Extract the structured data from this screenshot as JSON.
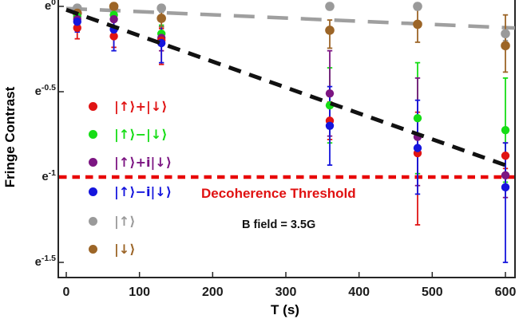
{
  "chart_data": {
    "type": "scatter",
    "title": "",
    "xlabel": "T (s)",
    "ylabel": "Fringe Contrast",
    "x_ticks": [
      "0",
      "100",
      "200",
      "300",
      "400",
      "500",
      "600"
    ],
    "x_tick_values": [
      0,
      100,
      200,
      300,
      400,
      500,
      600
    ],
    "y_ticks": [
      {
        "base": "e",
        "exp": "0",
        "value": 0
      },
      {
        "base": "e",
        "exp": "-0.5",
        "value": -0.5
      },
      {
        "base": "e",
        "exp": "-1",
        "value": -1
      },
      {
        "base": "e",
        "exp": "-1.5",
        "value": -1.5
      }
    ],
    "xlim": [
      0,
      600
    ],
    "ylim_ln": [
      -1.59,
      0.05
    ],
    "grid": false,
    "legend_position": "inside-left",
    "y_scale": "log (natural), values below are ln(contrast)",
    "series": [
      {
        "key": "up-plus-down",
        "label": "|↑⟩+|↓⟩",
        "color": "#e01414",
        "points": [
          {
            "t": 15,
            "v": -0.126,
            "lo": -0.19,
            "hi": -0.08
          },
          {
            "t": 65,
            "v": -0.175,
            "lo": -0.24,
            "hi": -0.12
          },
          {
            "t": 130,
            "v": -0.2,
            "lo": -0.34,
            "hi": -0.13
          },
          {
            "t": 360,
            "v": -0.67,
            "lo": -0.78,
            "hi": -0.56
          },
          {
            "t": 480,
            "v": -0.86,
            "lo": -1.28,
            "hi": -0.62
          },
          {
            "t": 600,
            "v": -0.875,
            "lo": -0.95,
            "hi": -0.8
          }
        ]
      },
      {
        "key": "up-minus-down",
        "label": "|↑⟩−|↓⟩",
        "color": "#16dd16",
        "points": [
          {
            "t": 15,
            "v": -0.06,
            "lo": -0.1,
            "hi": -0.03
          },
          {
            "t": 65,
            "v": -0.05,
            "lo": -0.09,
            "hi": -0.02
          },
          {
            "t": 130,
            "v": -0.16,
            "lo": -0.22,
            "hi": -0.11
          },
          {
            "t": 360,
            "v": -0.58,
            "lo": -0.8,
            "hi": -0.36
          },
          {
            "t": 480,
            "v": -0.655,
            "lo": -0.98,
            "hi": -0.33
          },
          {
            "t": 600,
            "v": -0.725,
            "lo": -1.03,
            "hi": -0.42
          }
        ]
      },
      {
        "key": "up-plus-i-down",
        "label": "|↑⟩+i|↓⟩",
        "color": "#7c1582",
        "points": [
          {
            "t": 15,
            "v": -0.075,
            "lo": -0.12,
            "hi": -0.04
          },
          {
            "t": 65,
            "v": -0.075,
            "lo": -0.12,
            "hi": -0.03
          },
          {
            "t": 130,
            "v": -0.185,
            "lo": -0.26,
            "hi": -0.12
          },
          {
            "t": 360,
            "v": -0.51,
            "lo": -0.76,
            "hi": -0.26
          },
          {
            "t": 480,
            "v": -0.765,
            "lo": -1.05,
            "hi": -0.42
          },
          {
            "t": 600,
            "v": -0.99,
            "lo": -1.12,
            "hi": -0.86
          }
        ]
      },
      {
        "key": "up-minus-i-down",
        "label": "|↑⟩−i|↓⟩",
        "color": "#1515dd",
        "points": [
          {
            "t": 15,
            "v": -0.09,
            "lo": -0.15,
            "hi": -0.05
          },
          {
            "t": 65,
            "v": -0.135,
            "lo": -0.26,
            "hi": -0.06
          },
          {
            "t": 130,
            "v": -0.215,
            "lo": -0.33,
            "hi": -0.12
          },
          {
            "t": 360,
            "v": -0.7,
            "lo": -0.93,
            "hi": -0.47
          },
          {
            "t": 480,
            "v": -0.83,
            "lo": -1.1,
            "hi": -0.55
          },
          {
            "t": 600,
            "v": -1.06,
            "lo": -1.5,
            "hi": -0.8
          }
        ]
      },
      {
        "key": "up",
        "label": "|↑⟩",
        "color": "#9a9a9a",
        "points": [
          {
            "t": 15,
            "v": -0.01,
            "lo": -0.035,
            "hi": 0.01
          },
          {
            "t": 65,
            "v": -0.02,
            "lo": -0.045,
            "hi": 0.0
          },
          {
            "t": 130,
            "v": -0.01,
            "lo": -0.035,
            "hi": 0.01
          },
          {
            "t": 360,
            "v": 0.0,
            "lo": -0.02,
            "hi": 0.02
          },
          {
            "t": 480,
            "v": 0.0,
            "lo": -0.02,
            "hi": 0.02
          },
          {
            "t": 600,
            "v": -0.16,
            "lo": -0.2,
            "hi": -0.12
          }
        ]
      },
      {
        "key": "down",
        "label": "|↓⟩",
        "color": "#9c6527",
        "points": [
          {
            "t": 15,
            "v": -0.04,
            "lo": -0.075,
            "hi": -0.01
          },
          {
            "t": 65,
            "v": 0.0,
            "lo": -0.03,
            "hi": 0.02
          },
          {
            "t": 130,
            "v": -0.07,
            "lo": -0.12,
            "hi": -0.02
          },
          {
            "t": 360,
            "v": -0.14,
            "lo": -0.245,
            "hi": -0.08
          },
          {
            "t": 480,
            "v": -0.105,
            "lo": -0.21,
            "hi": -0.02
          },
          {
            "t": 600,
            "v": -0.23,
            "lo": -0.385,
            "hi": -0.05
          }
        ]
      }
    ],
    "fits": [
      {
        "key": "superposition-fit",
        "kind": "dash",
        "color": "#111111",
        "t": [
          0,
          603
        ],
        "v": [
          -0.02,
          -0.935
        ]
      },
      {
        "key": "population-fit",
        "kind": "longdash",
        "color": "#9f9f9f",
        "t": [
          0,
          613
        ],
        "v": [
          -0.012,
          -0.127
        ]
      }
    ],
    "threshold": {
      "label": "Decoherence Threshold",
      "value": -1,
      "color": "#e80000"
    },
    "annotations": {
      "b_field": "B field = 3.5G"
    }
  }
}
